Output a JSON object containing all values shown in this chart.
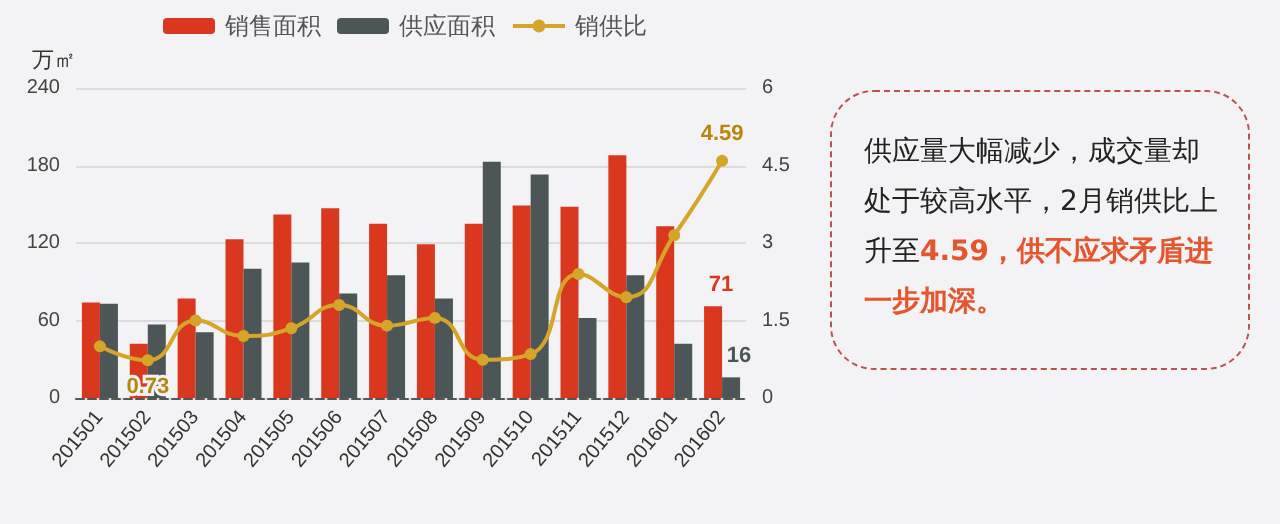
{
  "chart_data": {
    "type": "bar",
    "categories": [
      "201501",
      "201502",
      "201503",
      "201504",
      "201505",
      "201506",
      "201507",
      "201508",
      "201509",
      "201510",
      "201511",
      "201512",
      "201601",
      "201602"
    ],
    "ylabel": "万㎡",
    "series": [
      {
        "name": "销售面积",
        "color": "#d9381e",
        "values": [
          74,
          42,
          77,
          123,
          142,
          147,
          135,
          119,
          135,
          149,
          148,
          188,
          133,
          71
        ],
        "value_labels": [
          null,
          null,
          null,
          null,
          null,
          null,
          null,
          null,
          null,
          null,
          null,
          null,
          null,
          "71"
        ]
      },
      {
        "name": "供应面积",
        "color": "#4d5656",
        "values": [
          73,
          57,
          51,
          100,
          105,
          81,
          95,
          77,
          183,
          173,
          62,
          95,
          42,
          16
        ],
        "value_labels": [
          null,
          null,
          null,
          null,
          null,
          null,
          null,
          null,
          null,
          null,
          null,
          null,
          null,
          "16"
        ]
      },
      {
        "name": "销供比",
        "type": "line",
        "axis": "y2",
        "color": "#d4a528",
        "values": [
          1.0,
          0.73,
          1.5,
          1.2,
          1.35,
          1.8,
          1.4,
          1.55,
          0.74,
          0.85,
          2.4,
          1.95,
          3.15,
          4.59
        ],
        "value_labels": [
          null,
          "0.73",
          null,
          null,
          null,
          null,
          null,
          null,
          null,
          null,
          null,
          null,
          null,
          "4.59"
        ]
      }
    ],
    "ylim": [
      0,
      240
    ],
    "yticks": [
      0,
      60,
      120,
      180,
      240
    ],
    "y2lim": [
      0,
      6
    ],
    "y2ticks": [
      0,
      1.5,
      3,
      4.5,
      6
    ],
    "grid": "y",
    "legend": "top",
    "marker": "circle",
    "annotations": [
      "供应量大幅减少，成交量却处于较高水平，2月销供比上升至",
      "4.59，供不应求矛盾进一步加深。"
    ]
  }
}
